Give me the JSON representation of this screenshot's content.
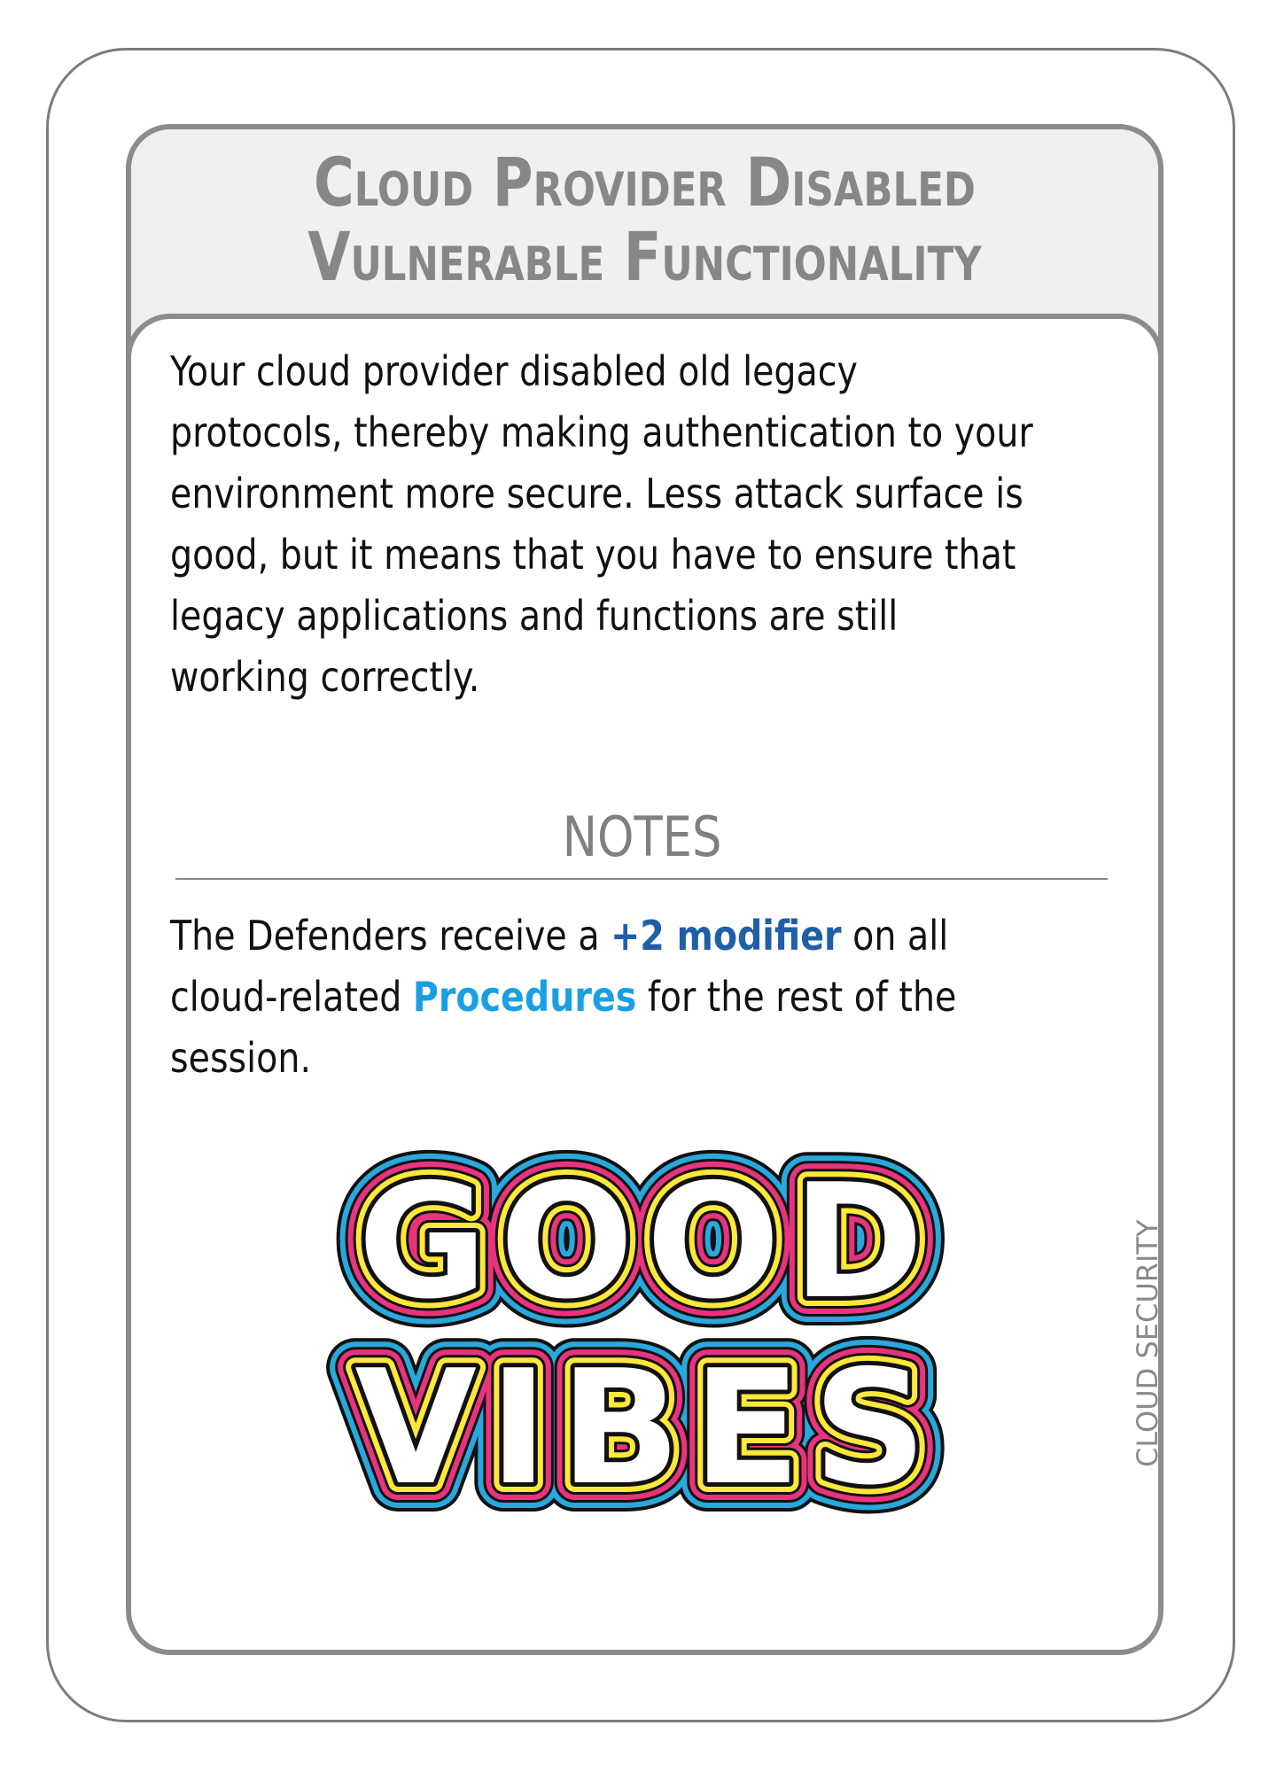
{
  "card": {
    "title_line1": "Cloud Provider Disabled",
    "title_line2": "Vulnerable Functionality",
    "description_lines": [
      "Your cloud provider disabled old legacy",
      "protocols, thereby making authentication to your",
      "environment more secure. Less attack surface is",
      "good, but it means that you have to ensure that",
      "legacy applications and functions are still",
      "working correctly."
    ],
    "notes_heading": "NOTES",
    "notes": {
      "line1_pre": "The Defenders receive a ",
      "line1_modifier": "+2 modifier",
      "line1_post": " on all",
      "line2_pre": "cloud-related ",
      "line2_procedures": "Procedures",
      "line2_post": " for the rest of the",
      "line3": "session."
    },
    "side_label": "CLOUD SECURITY",
    "logo": {
      "line1": "GOOD",
      "line2": "VIBES",
      "colors": {
        "outer": "#29a8dc",
        "middle": "#e8337d",
        "inner": "#ffe83a",
        "fill": "#ffffff",
        "outline": "#111111"
      }
    }
  }
}
